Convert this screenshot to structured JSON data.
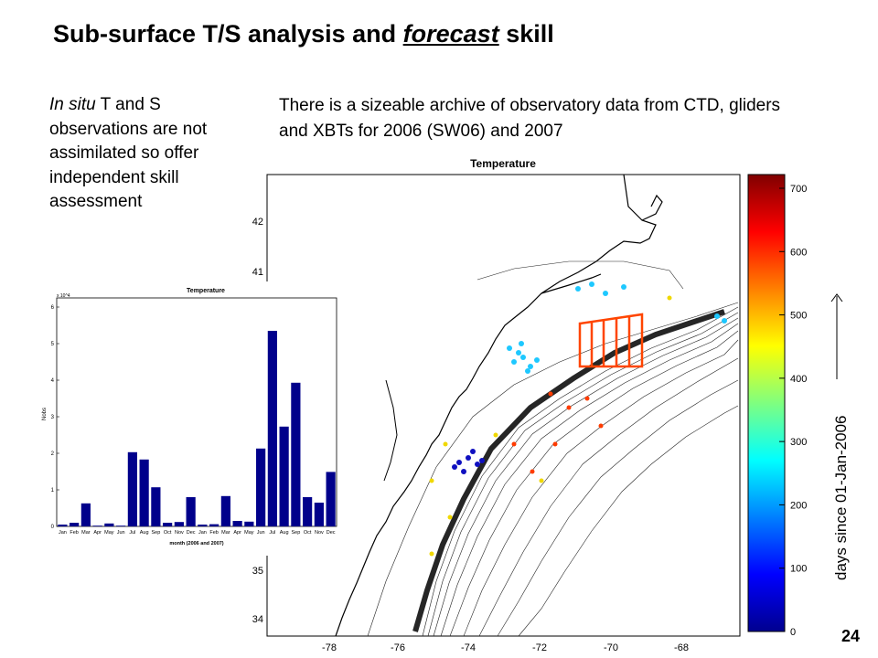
{
  "slide": {
    "title_main": "Sub-surface T/S analysis and ",
    "title_emph": "forecast",
    "title_end": " skill",
    "left_note_italic": "In situ",
    "left_note_rest": " T and S observations are not assimilated so offer independent skill assessment",
    "archive_text": "There is a sizeable archive of observatory data from CTD, gliders and XBTs for 2006 (SW06) and 2007",
    "page_number": "24",
    "days_label": "days since 01-Jan-2006"
  },
  "map": {
    "title": "Temperature",
    "x_ticks": [
      "-78",
      "-76",
      "-74",
      "-72",
      "-70",
      "-68"
    ],
    "y_ticks": [
      "42",
      "41",
      "35",
      "34"
    ],
    "colorbar": {
      "ticks": [
        "0",
        "100",
        "200",
        "300",
        "400",
        "500",
        "600",
        "700"
      ],
      "range": [
        0,
        700
      ],
      "colormap": "jet"
    }
  },
  "chart_data": {
    "type": "bar",
    "title": "Temperature",
    "xlabel": "month (2006 and 2007)",
    "ylabel": "Nobs",
    "y_exponent": "x 10^4",
    "ylim": [
      0,
      6
    ],
    "y_ticks": [
      "0",
      "1",
      "2",
      "3",
      "4",
      "5",
      "6"
    ],
    "color": "#00008b",
    "categories": [
      "Jan",
      "Feb",
      "Mar",
      "Apr",
      "May",
      "Jun",
      "Jul",
      "Aug",
      "Sep",
      "Oct",
      "Nov",
      "Dec",
      "Jan",
      "Feb",
      "Mar",
      "Apr",
      "May",
      "Jun",
      "Jul",
      "Aug",
      "Sep",
      "Oct",
      "Nov",
      "Dec"
    ],
    "values": [
      0.05,
      0.1,
      0.63,
      0.02,
      0.08,
      0.02,
      2.03,
      1.83,
      1.07,
      0.1,
      0.12,
      0.8,
      0.05,
      0.06,
      0.83,
      0.15,
      0.13,
      2.13,
      5.35,
      2.73,
      3.93,
      0.8,
      0.65,
      1.49
    ]
  }
}
